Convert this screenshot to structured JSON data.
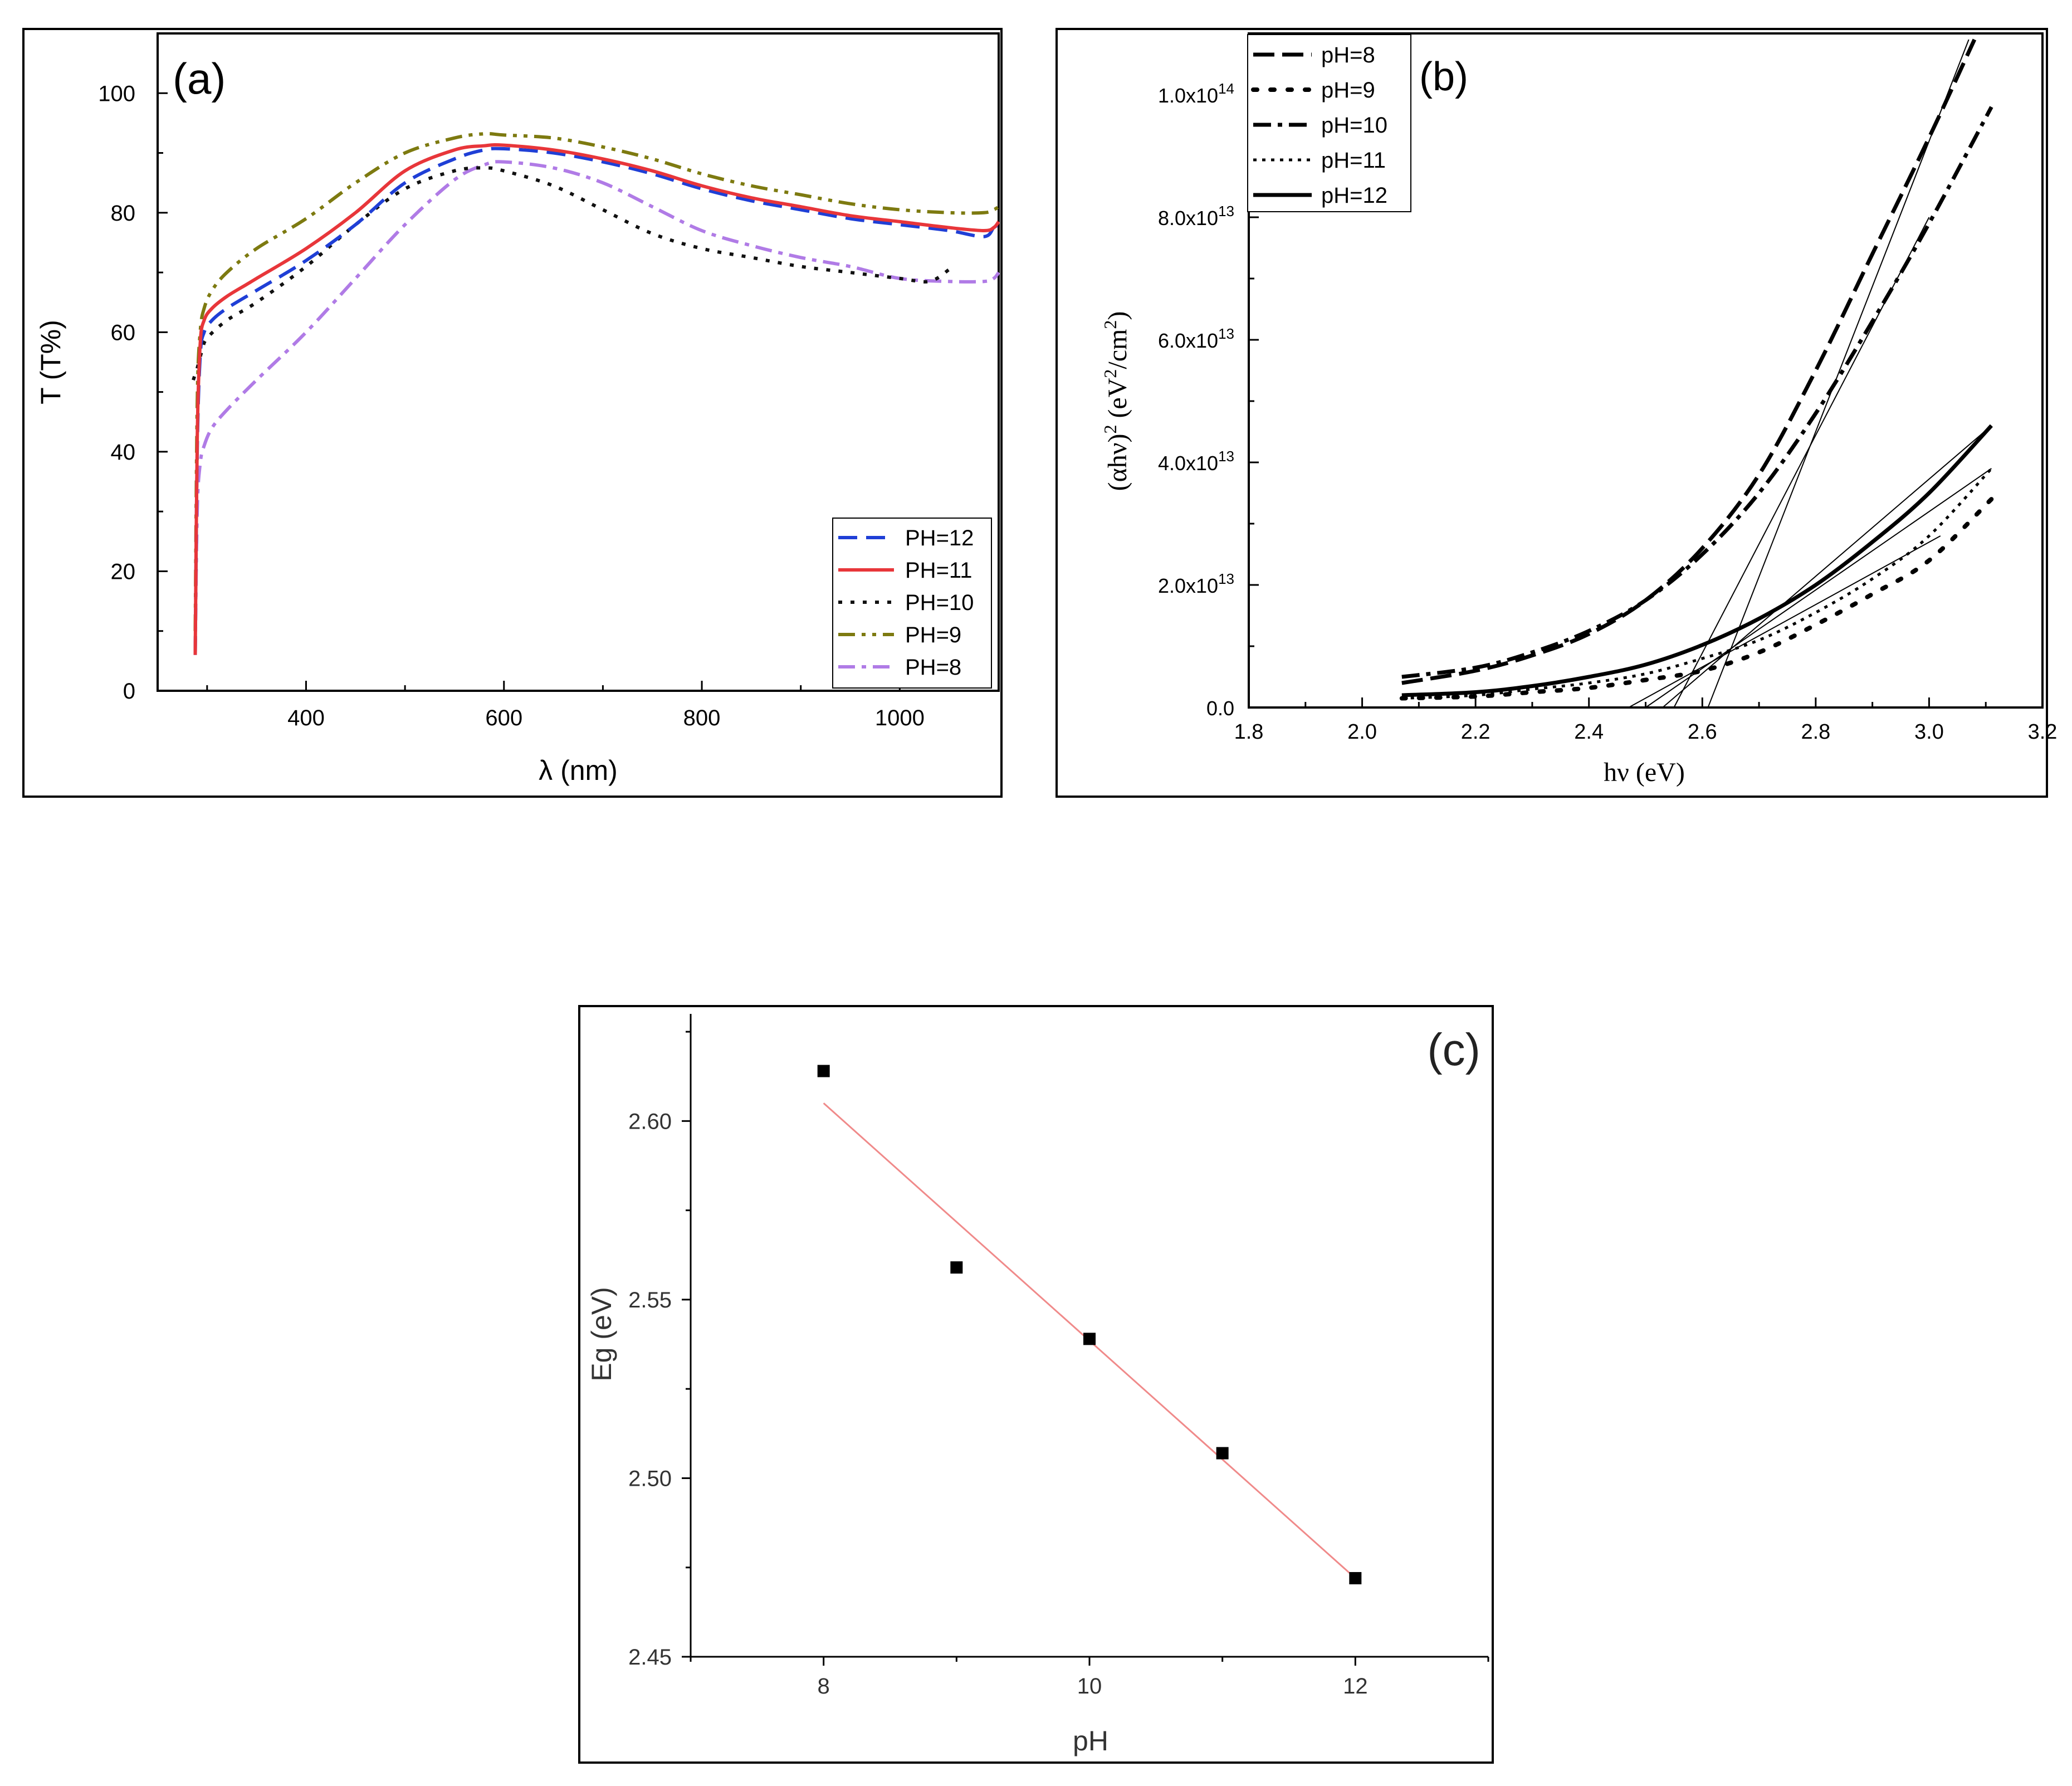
{
  "figure": "optical-properties-three-panel",
  "chart_data": [
    {
      "id": "a",
      "type": "line",
      "panel_label": "(a)",
      "xlabel": "λ (nm)",
      "ylabel": "T (T%)",
      "xlim": [
        250,
        1100
      ],
      "ylim": [
        0,
        110
      ],
      "xticks": [
        400,
        600,
        800,
        1000
      ],
      "yticks": [
        0,
        20,
        40,
        60,
        80,
        100
      ],
      "legend_position": "bottom-right",
      "series": [
        {
          "name": "PH=12",
          "color": "#1f3fd6",
          "dash": "dash",
          "x": [
            288,
            290,
            293,
            297,
            305,
            320,
            350,
            400,
            450,
            500,
            550,
            580,
            600,
            650,
            700,
            750,
            800,
            850,
            900,
            950,
            1000,
            1050,
            1085,
            1095,
            1100
          ],
          "y": [
            6,
            40,
            56,
            60,
            62,
            64,
            67,
            72,
            78,
            85,
            89,
            90.5,
            90.7,
            90,
            88.5,
            86.5,
            84,
            82,
            80.5,
            79,
            78,
            77,
            76,
            77.5,
            78
          ]
        },
        {
          "name": "PH=11",
          "color": "#e8363a",
          "dash": "solid",
          "x": [
            288,
            290,
            293,
            297,
            305,
            320,
            340,
            350,
            400,
            450,
            500,
            550,
            580,
            600,
            650,
            700,
            750,
            800,
            850,
            900,
            950,
            1000,
            1050,
            1085,
            1095,
            1100
          ],
          "y": [
            6,
            42,
            58,
            62,
            64,
            66,
            68,
            69,
            74,
            80,
            87,
            90.5,
            91.2,
            91.3,
            90.5,
            89,
            87,
            84.5,
            82.5,
            81,
            79.5,
            78.5,
            77.5,
            77,
            77.5,
            78.5
          ]
        },
        {
          "name": "PH=10",
          "color": "#111111",
          "dash": "dot",
          "x": [
            286,
            290,
            295,
            300,
            320,
            350,
            400,
            450,
            500,
            550,
            580,
            600,
            650,
            700,
            750,
            800,
            850,
            900,
            950,
            1000,
            1030,
            1050
          ],
          "y": [
            52,
            54,
            57,
            59,
            62,
            65,
            71,
            78,
            84,
            87,
            87.5,
            87,
            84.5,
            80.5,
            76.5,
            74,
            72.5,
            71,
            70,
            69,
            68.5,
            70.5
          ]
        },
        {
          "name": "PH=9",
          "color": "#7d7a10",
          "dash": "dashdotdot",
          "x": [
            288,
            290,
            293,
            297,
            305,
            320,
            350,
            400,
            450,
            500,
            550,
            580,
            600,
            650,
            700,
            750,
            800,
            850,
            900,
            950,
            1000,
            1050,
            1085,
            1095,
            1100
          ],
          "y": [
            10,
            48,
            60,
            64,
            67,
            70,
            74,
            79,
            85,
            90,
            92.5,
            93.2,
            93,
            92.5,
            91,
            89,
            86.5,
            84.5,
            83,
            81.5,
            80.5,
            80,
            80,
            80.5,
            81
          ]
        },
        {
          "name": "PH=8",
          "color": "#b07be6",
          "dash": "dashdot",
          "x": [
            288,
            290,
            293,
            297,
            305,
            320,
            350,
            400,
            450,
            500,
            550,
            580,
            600,
            650,
            700,
            750,
            800,
            850,
            900,
            950,
            1000,
            1050,
            1085,
            1095,
            1100
          ],
          "y": [
            6,
            30,
            38,
            41,
            44,
            47,
            52,
            60,
            69,
            78,
            85.5,
            88,
            88.5,
            87.5,
            85,
            81,
            77,
            74.5,
            72.5,
            71,
            69,
            68.5,
            68.5,
            69,
            70
          ]
        }
      ]
    },
    {
      "id": "b",
      "type": "line",
      "panel_label": "(b)",
      "xlabel": "hν (eV)",
      "ylabel": "(αhν)² (eV²/cm²)",
      "xlim": [
        1.8,
        3.2
      ],
      "ylim": [
        0,
        110000000000000.0
      ],
      "xticks": [
        "1.8",
        "2.0",
        "2.2",
        "2.4",
        "2.6",
        "2.8",
        "3.0",
        "3.2"
      ],
      "yticks": [
        {
          "value": 0,
          "mantissa": "0.0",
          "exponent": ""
        },
        {
          "value": 20000000000000.0,
          "mantissa": "2.0x10",
          "exponent": "13"
        },
        {
          "value": 40000000000000.0,
          "mantissa": "4.0x10",
          "exponent": "13"
        },
        {
          "value": 60000000000000.0,
          "mantissa": "6.0x10",
          "exponent": "13"
        },
        {
          "value": 80000000000000.0,
          "mantissa": "8.0x10",
          "exponent": "13"
        },
        {
          "value": 100000000000000.0,
          "mantissa": "1.0x10",
          "exponent": "14"
        }
      ],
      "legend_position": "top-left",
      "series": [
        {
          "name": "pH=8",
          "color": "#000000",
          "dash": "longdash",
          "x": [
            2.07,
            2.2,
            2.3,
            2.4,
            2.5,
            2.6,
            2.7,
            2.8,
            2.9,
            3.0,
            3.08
          ],
          "y": [
            4000000000000.0,
            6000000000000.0,
            8500000000000.0,
            12000000000000.0,
            17500000000000.0,
            26000000000000.0,
            38000000000000.0,
            55000000000000.0,
            74000000000000.0,
            93000000000000.0,
            109000000000000.0
          ]
        },
        {
          "name": "pH=9",
          "color": "#000000",
          "dash": "sparsedot",
          "x": [
            2.07,
            2.2,
            2.3,
            2.4,
            2.5,
            2.6,
            2.7,
            2.8,
            2.9,
            3.0,
            3.11
          ],
          "y": [
            1500000000000.0,
            1800000000000.0,
            2500000000000.0,
            3200000000000.0,
            4500000000000.0,
            6000000000000.0,
            9000000000000.0,
            13500000000000.0,
            18500000000000.0,
            24000000000000.0,
            34000000000000.0
          ]
        },
        {
          "name": "pH=10",
          "color": "#000000",
          "dash": "dashdot",
          "x": [
            2.07,
            2.2,
            2.3,
            2.4,
            2.5,
            2.6,
            2.7,
            2.8,
            2.9,
            3.0,
            3.11
          ],
          "y": [
            5000000000000.0,
            6500000000000.0,
            9000000000000.0,
            12500000000000.0,
            17500000000000.0,
            25000000000000.0,
            35000000000000.0,
            48000000000000.0,
            63000000000000.0,
            79000000000000.0,
            98000000000000.0
          ]
        },
        {
          "name": "pH=11",
          "color": "#000000",
          "dash": "dot",
          "x": [
            2.07,
            2.2,
            2.3,
            2.4,
            2.5,
            2.6,
            2.7,
            2.8,
            2.9,
            3.0,
            3.11
          ],
          "y": [
            1500000000000.0,
            2000000000000.0,
            3000000000000.0,
            4000000000000.0,
            5500000000000.0,
            8000000000000.0,
            11000000000000.0,
            15500000000000.0,
            21000000000000.0,
            28000000000000.0,
            39000000000000.0
          ]
        },
        {
          "name": "pH=12",
          "color": "#000000",
          "dash": "solid",
          "x": [
            2.07,
            2.2,
            2.3,
            2.4,
            2.5,
            2.6,
            2.7,
            2.8,
            2.9,
            3.0,
            3.11
          ],
          "y": [
            2000000000000.0,
            2500000000000.0,
            3500000000000.0,
            5000000000000.0,
            7000000000000.0,
            10200000000000.0,
            14500000000000.0,
            20000000000000.0,
            27000000000000.0,
            35000000000000.0,
            46000000000000.0
          ]
        }
      ],
      "fit_lines": [
        {
          "x": [
            2.61,
            3.07
          ],
          "y": [
            0,
            109000000000000.0
          ]
        },
        {
          "x": [
            2.55,
            3.0
          ],
          "y": [
            0,
            80000000000000.0
          ]
        },
        {
          "x": [
            2.53,
            3.11
          ],
          "y": [
            0,
            46000000000000.0
          ]
        },
        {
          "x": [
            2.5,
            3.11
          ],
          "y": [
            0,
            39000000000000.0
          ]
        },
        {
          "x": [
            2.47,
            3.02
          ],
          "y": [
            0,
            28000000000000.0
          ]
        }
      ]
    },
    {
      "id": "c",
      "type": "scatter",
      "panel_label": "(c)",
      "xlabel": "pH",
      "ylabel": "Eg (eV)",
      "xlim": [
        7,
        13
      ],
      "ylim": [
        2.45,
        2.63
      ],
      "xticks": [
        "8",
        "10",
        "12"
      ],
      "yticks": [
        "2.45",
        "2.50",
        "2.55",
        "2.60"
      ],
      "series": [
        {
          "name": "Eg",
          "color": "#000000",
          "marker": "square",
          "x": [
            8,
            9,
            10,
            11,
            12
          ],
          "y": [
            2.614,
            2.559,
            2.539,
            2.507,
            2.472
          ]
        }
      ],
      "fit_line": {
        "color": "#f08a8a",
        "x": [
          8,
          12
        ],
        "y": [
          2.605,
          2.472
        ]
      }
    }
  ]
}
